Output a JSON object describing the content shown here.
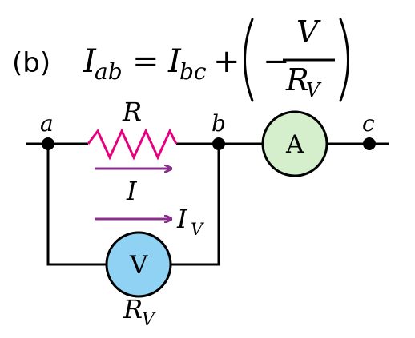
{
  "equation": {
    "part_label": "(b)",
    "lhs_base": "I",
    "lhs_sub": "ab",
    "equals": "=",
    "rhs1_base": "I",
    "rhs1_sub": "bc",
    "plus": "+",
    "minus": "−",
    "frac_num": "V",
    "frac_den_base": "R",
    "frac_den_sub": "V"
  },
  "circuit": {
    "node_a": "a",
    "node_b": "b",
    "node_c": "c",
    "resistor_label": "R",
    "current_I_label": "I",
    "current_IV_base": "I",
    "current_IV_sub": "V",
    "ammeter_symbol": "A",
    "voltmeter_symbol": "V",
    "voltmeter_resistance_base": "R",
    "voltmeter_resistance_sub": "V"
  },
  "colors": {
    "wire": "#000000",
    "resistor": "#e6007e",
    "current_arrow": "#8b2f8f",
    "ammeter_fill": "#d5efcd",
    "voltmeter_fill": "#8fd2f3",
    "meter_stroke": "#000000"
  },
  "icons": {
    "resistor": "zigzag-resistor-symbol",
    "ammeter": "ammeter-symbol",
    "voltmeter": "voltmeter-symbol",
    "arrow": "right-arrow"
  }
}
